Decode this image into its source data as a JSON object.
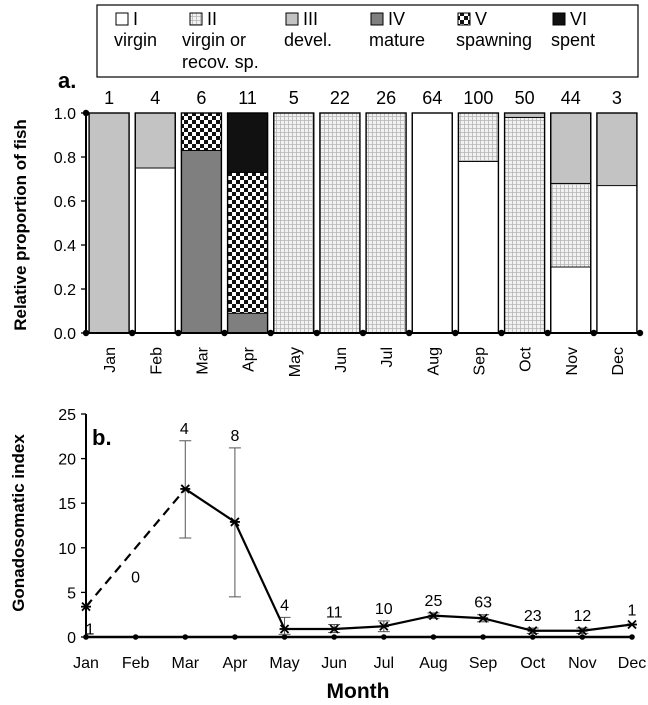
{
  "chart_data": [
    {
      "panel_label": "a.",
      "type": "bar",
      "stacked": true,
      "ylabel": "Relative  proportion of fish",
      "ylim": [
        0,
        1.0
      ],
      "yticks": [
        "0.0",
        "0.2",
        "0.4",
        "0.6",
        "0.8",
        "1.0"
      ],
      "categories": [
        "Jan",
        "Feb",
        "Mar",
        "Apr",
        "May",
        "Jun",
        "Jul",
        "Aug",
        "Sep",
        "Oct",
        "Nov",
        "Dec"
      ],
      "sample_sizes": [
        "1",
        "4",
        "6",
        "11",
        "5",
        "22",
        "26",
        "64",
        "100",
        "50",
        "44",
        "3"
      ],
      "legend_position": "top",
      "legend": [
        {
          "code": "I",
          "label": [
            "virgin"
          ]
        },
        {
          "code": "II",
          "label": [
            "virgin or",
            "recov. sp."
          ]
        },
        {
          "code": "III",
          "label": [
            "devel."
          ]
        },
        {
          "code": "IV",
          "label": [
            "mature"
          ]
        },
        {
          "code": "V",
          "label": [
            "spawning"
          ]
        },
        {
          "code": "VI",
          "label": [
            "spent"
          ]
        }
      ],
      "series": [
        {
          "values": [
            0,
            0.75,
            0,
            0,
            0,
            0,
            0,
            1.0,
            0.78,
            0,
            0.3,
            0.67
          ]
        },
        {
          "values": [
            0,
            0,
            0,
            0,
            1.0,
            1.0,
            1.0,
            0,
            0.22,
            0.98,
            0.38,
            0
          ]
        },
        {
          "values": [
            1.0,
            0.25,
            0,
            0,
            0,
            0,
            0,
            0,
            0,
            0.02,
            0.32,
            0.33
          ]
        },
        {
          "values": [
            0,
            0,
            0.83,
            0.09,
            0,
            0,
            0,
            0,
            0,
            0,
            0,
            0
          ]
        },
        {
          "values": [
            0,
            0,
            0.17,
            0.64,
            0,
            0,
            0,
            0,
            0,
            0,
            0,
            0
          ]
        },
        {
          "values": [
            0,
            0,
            0,
            0.27,
            0,
            0,
            0,
            0,
            0,
            0,
            0,
            0
          ]
        }
      ],
      "styles": {
        "I": "#ffffff",
        "II": "#ebebeb",
        "III": "#c3c3c3",
        "IV": "#7f7f7f",
        "V": "checkerboard",
        "VI": "#111111"
      }
    },
    {
      "panel_label": "b.",
      "type": "line",
      "xlabel": "Month",
      "ylabel": "Gonadosomatic index",
      "ylim": [
        0,
        25
      ],
      "yticks": [
        "0",
        "5",
        "10",
        "15",
        "20",
        "25"
      ],
      "categories": [
        "Jan",
        "Feb",
        "Mar",
        "Apr",
        "May",
        "Jun",
        "Jul",
        "Aug",
        "Sep",
        "Oct",
        "Nov",
        "Dec"
      ],
      "values": [
        3.4,
        null,
        16.6,
        12.9,
        0.9,
        0.9,
        1.2,
        2.4,
        2.1,
        0.7,
        0.7,
        1.4
      ],
      "error_low": [
        null,
        null,
        11.1,
        4.5,
        0.3,
        0.5,
        0.6,
        2.1,
        1.7,
        0.4,
        0.4,
        null
      ],
      "error_high": [
        null,
        null,
        22.0,
        21.2,
        2.2,
        1.4,
        1.8,
        2.7,
        2.5,
        1.0,
        1.0,
        null
      ],
      "sample_sizes": [
        "1",
        "0",
        "4",
        "8",
        "4",
        "11",
        "10",
        "25",
        "63",
        "23",
        "12",
        "1"
      ],
      "dashed_segment": [
        "Jan",
        "Mar"
      ]
    }
  ]
}
